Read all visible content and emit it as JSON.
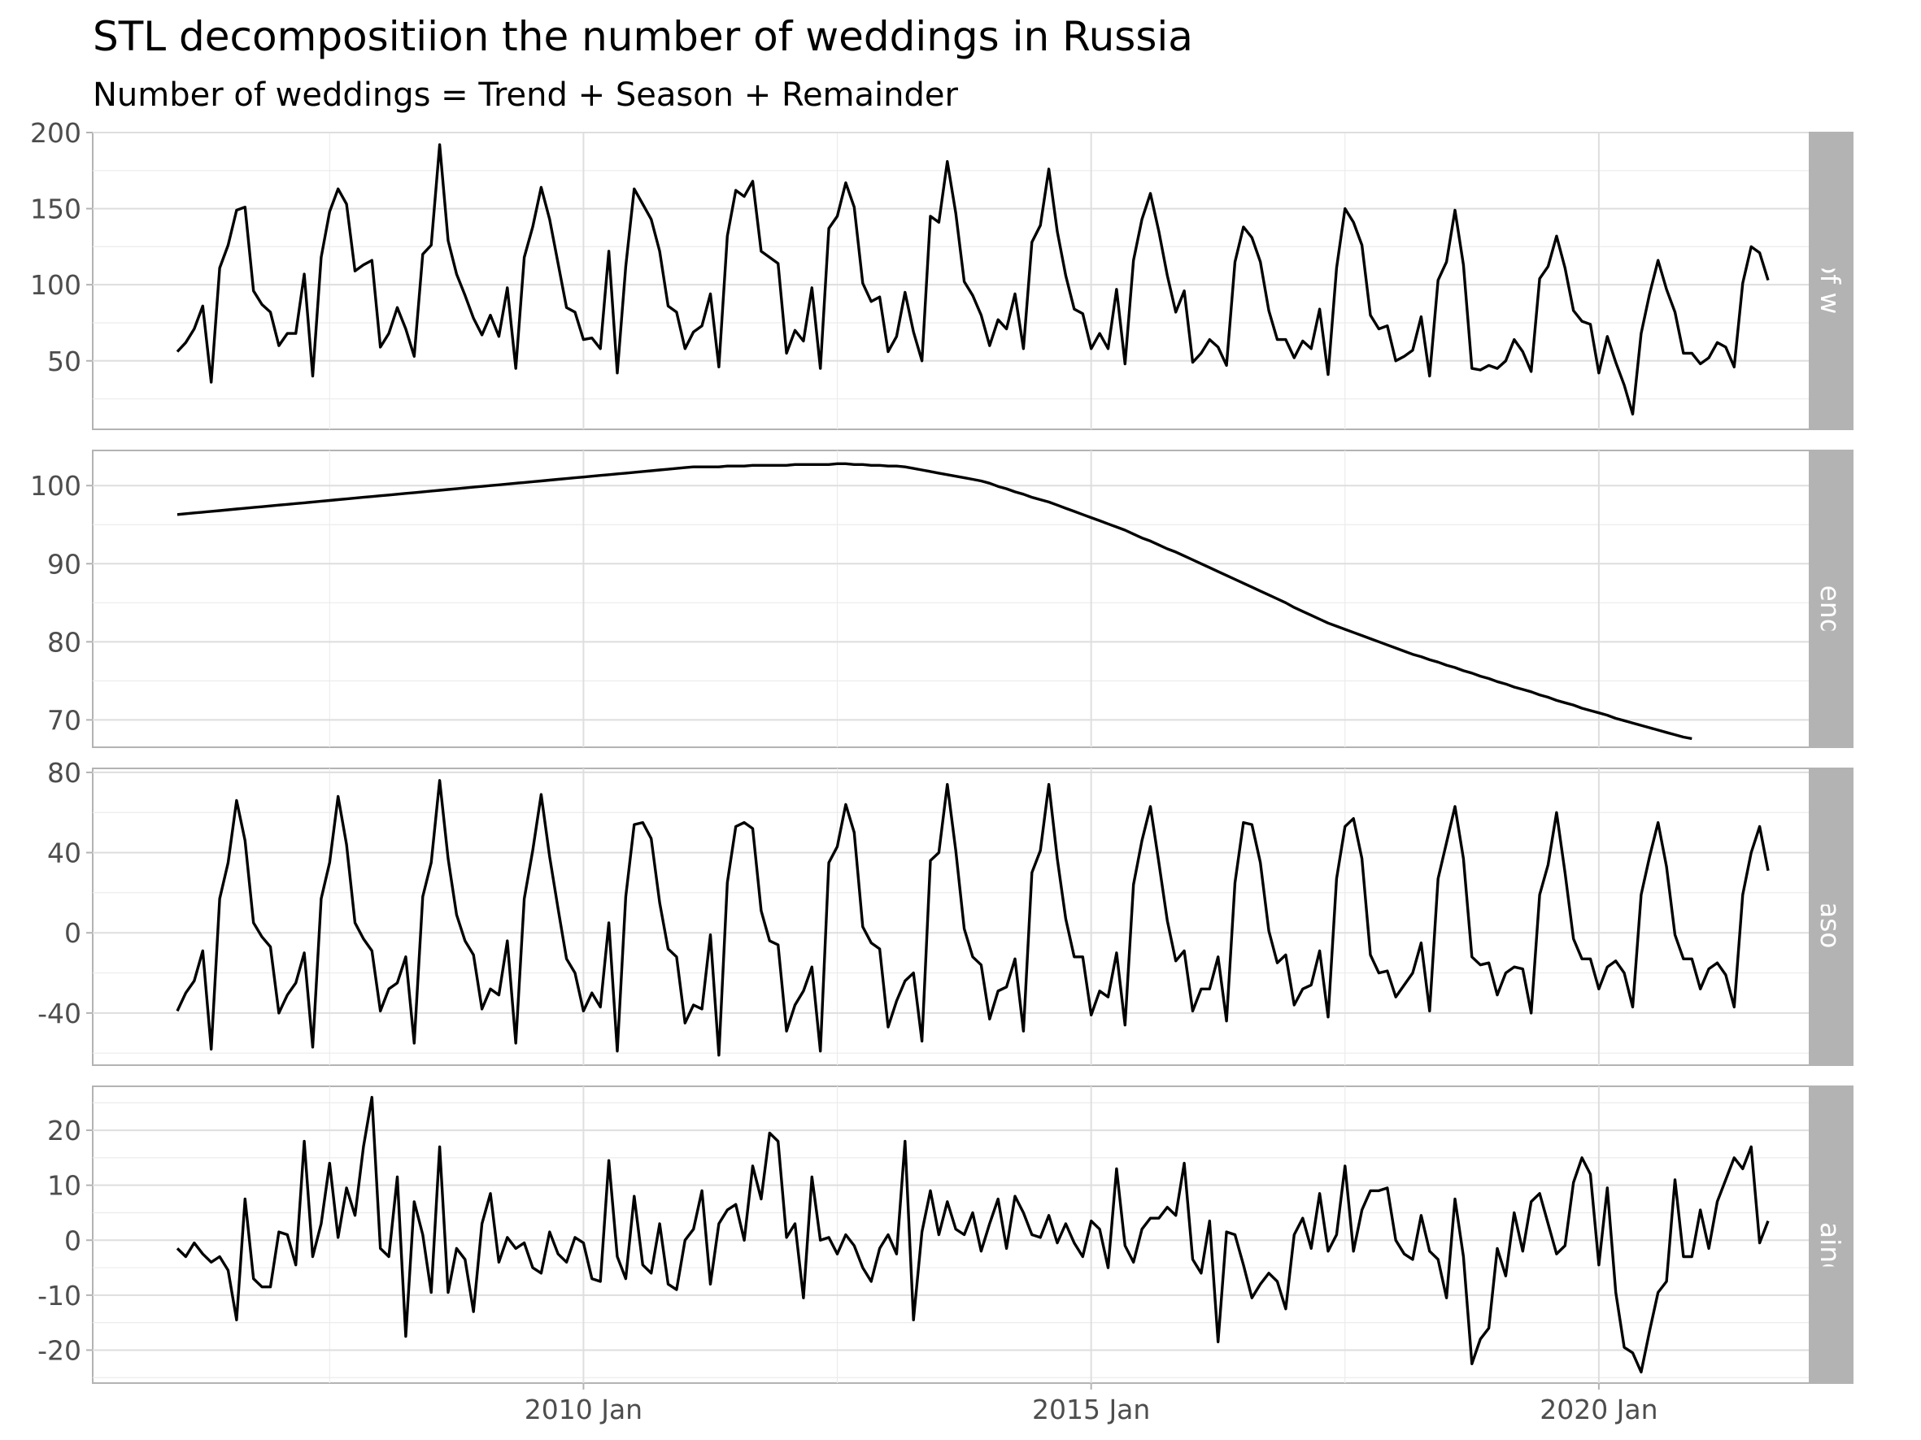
{
  "chart_data": {
    "type": "line",
    "title": "STL decompositiion the number of weddings in Russia",
    "subtitle": "Number of weddings = Trend + Season + Remainder",
    "x_start": "2006 Jan",
    "x_step": "month",
    "x_ticks": [
      "2010 Jan",
      "2015 Jan",
      "2020 Jan"
    ],
    "xlim": [
      "2005 Mar",
      "2022 Jul"
    ],
    "grid": true,
    "legend": "none",
    "panels": [
      {
        "name": "Number of weddings",
        "ylim": [
          5,
          200
        ],
        "y_ticks": [
          50,
          100,
          150,
          200
        ],
        "values": [
          56,
          62,
          71,
          86,
          36,
          111,
          126,
          149,
          151,
          96,
          87,
          82,
          60,
          68,
          68,
          107,
          40,
          118,
          148,
          163,
          153,
          109,
          113,
          116,
          59,
          68,
          85,
          71,
          53,
          120,
          126,
          192,
          129,
          107,
          93,
          78,
          67,
          80,
          66,
          98,
          45,
          118,
          138,
          164,
          143,
          114,
          85,
          82,
          64,
          65,
          58,
          122,
          42,
          112,
          163,
          153,
          143,
          122,
          86,
          82,
          58,
          69,
          73,
          94,
          46,
          132,
          162,
          158,
          168,
          122,
          118,
          114,
          55,
          70,
          63,
          98,
          45,
          137,
          145,
          167,
          151,
          101,
          89,
          92,
          56,
          66,
          95,
          69,
          50,
          145,
          141,
          181,
          147,
          102,
          93,
          80,
          60,
          77,
          71,
          94,
          58,
          128,
          139,
          176,
          135,
          106,
          84,
          81,
          58,
          68,
          58,
          97,
          48,
          116,
          143,
          160,
          135,
          106,
          82,
          96,
          49,
          55,
          64,
          59,
          47,
          115,
          138,
          131,
          115,
          83,
          64,
          64,
          52,
          63,
          58,
          84,
          41,
          111,
          150,
          141,
          126,
          80,
          71,
          73,
          50,
          53,
          57,
          79,
          40,
          103,
          115,
          149,
          113,
          45,
          44,
          47,
          45,
          50,
          64,
          56,
          43,
          104,
          112,
          132,
          111,
          83,
          76,
          74,
          42,
          66,
          49,
          34,
          15,
          68,
          94,
          116,
          97,
          82,
          55,
          55,
          48,
          52,
          62,
          59,
          46,
          101,
          125,
          121,
          103
        ]
      },
      {
        "name": "Trend",
        "ylim": [
          66.5,
          104.5
        ],
        "y_ticks": [
          70,
          80,
          90,
          100
        ],
        "values": [
          96.3,
          96.4,
          96.5,
          96.6,
          96.7,
          96.8,
          96.9,
          97.0,
          97.1,
          97.2,
          97.3,
          97.4,
          97.5,
          97.6,
          97.7,
          97.8,
          97.9,
          98.0,
          98.1,
          98.2,
          98.3,
          98.4,
          98.5,
          98.6,
          98.7,
          98.8,
          98.9,
          99.0,
          99.1,
          99.2,
          99.3,
          99.4,
          99.5,
          99.6,
          99.7,
          99.8,
          99.9,
          100.0,
          100.1,
          100.2,
          100.3,
          100.4,
          100.5,
          100.6,
          100.7,
          100.8,
          100.9,
          101.0,
          101.1,
          101.2,
          101.3,
          101.4,
          101.5,
          101.6,
          101.7,
          101.8,
          101.9,
          102.0,
          102.1,
          102.2,
          102.3,
          102.4,
          102.4,
          102.4,
          102.4,
          102.5,
          102.5,
          102.5,
          102.6,
          102.6,
          102.6,
          102.6,
          102.6,
          102.7,
          102.7,
          102.7,
          102.7,
          102.7,
          102.8,
          102.8,
          102.7,
          102.7,
          102.6,
          102.6,
          102.5,
          102.5,
          102.4,
          102.2,
          102.0,
          101.8,
          101.6,
          101.4,
          101.2,
          101.0,
          100.8,
          100.6,
          100.3,
          99.9,
          99.6,
          99.2,
          98.9,
          98.5,
          98.2,
          97.9,
          97.5,
          97.1,
          96.7,
          96.3,
          95.9,
          95.5,
          95.1,
          94.7,
          94.3,
          93.8,
          93.3,
          92.9,
          92.4,
          91.9,
          91.5,
          91.0,
          90.5,
          90.0,
          89.5,
          89.0,
          88.5,
          88.0,
          87.5,
          87.0,
          86.5,
          86.0,
          85.5,
          85.0,
          84.4,
          83.9,
          83.4,
          82.9,
          82.4,
          82.0,
          81.6,
          81.2,
          80.8,
          80.4,
          80.0,
          79.6,
          79.2,
          78.8,
          78.4,
          78.1,
          77.7,
          77.4,
          77.0,
          76.7,
          76.3,
          76.0,
          75.6,
          75.3,
          74.9,
          74.6,
          74.2,
          73.9,
          73.6,
          73.2,
          72.9,
          72.5,
          72.2,
          71.9,
          71.5,
          71.2,
          70.9,
          70.6,
          70.2,
          69.9,
          69.6,
          69.3,
          69.0,
          68.7,
          68.4,
          68.1,
          67.8,
          67.6
        ]
      },
      {
        "name": "Season",
        "ylim": [
          -66,
          82
        ],
        "y_ticks": [
          -40,
          0,
          40,
          80
        ],
        "values": [
          -39,
          -30,
          -24,
          -9,
          -58,
          17,
          35,
          66,
          46,
          5,
          -2,
          -7,
          -40,
          -31,
          -25,
          -10,
          -57,
          17,
          35,
          68,
          44,
          5,
          -3,
          -9,
          -39,
          -28,
          -25,
          -12,
          -55,
          18,
          35,
          76,
          37,
          9,
          -4,
          -11,
          -38,
          -28,
          -31,
          -4,
          -55,
          17,
          41,
          69,
          38,
          12,
          -13,
          -20,
          -39,
          -30,
          -37,
          5,
          -59,
          18,
          54,
          55,
          47,
          15,
          -8,
          -12,
          -45,
          -36,
          -38,
          -1,
          -61,
          25,
          53,
          55,
          52,
          11,
          -4,
          -6,
          -49,
          -36,
          -29,
          -17,
          -59,
          35,
          43,
          64,
          50,
          3,
          -5,
          -8,
          -47,
          -34,
          -24,
          -20,
          -54,
          36,
          40,
          74,
          41,
          2,
          -12,
          -16,
          -43,
          -29,
          -27,
          -13,
          -49,
          30,
          41,
          74,
          37,
          7,
          -12,
          -12,
          -41,
          -29,
          -32,
          -10,
          -46,
          24,
          46,
          63,
          35,
          6,
          -14,
          -9,
          -39,
          -28,
          -28,
          -12,
          -44,
          25,
          55,
          54,
          35,
          1,
          -15,
          -11,
          -36,
          -28,
          -26,
          -9,
          -42,
          27,
          53,
          57,
          37,
          -11,
          -20,
          -19,
          -32,
          -26,
          -20,
          -5,
          -39,
          27,
          45,
          63,
          37,
          -12,
          -16,
          -15,
          -31,
          -20,
          -17,
          -18,
          -40,
          19,
          34,
          60,
          30,
          -3,
          -13,
          -13,
          -28,
          -17,
          -14,
          -20,
          -37,
          19,
          38,
          55,
          33,
          -1,
          -13,
          -13,
          -28,
          -18,
          -15,
          -21,
          -37,
          19,
          40,
          53,
          31
        ]
      },
      {
        "name": "Remainder",
        "ylim": [
          -26,
          28
        ],
        "y_ticks": [
          -20,
          -10,
          0,
          10,
          20
        ],
        "values": [
          -1.5,
          -3,
          -0.5,
          -2.5,
          -4,
          -3,
          -5.5,
          -14.5,
          7.5,
          -7,
          -8.5,
          -8.5,
          1.5,
          1,
          -4.5,
          18,
          -3,
          3,
          14,
          0.5,
          9.5,
          4.5,
          17,
          26,
          -1.5,
          -3,
          11.5,
          -17.5,
          7,
          1,
          -9.5,
          17,
          -9.5,
          -1.5,
          -3.5,
          -13,
          3,
          8.5,
          -4,
          0.5,
          -1.5,
          -0.5,
          -5,
          -6,
          1.5,
          -2.5,
          -4,
          0.5,
          -0.5,
          -7,
          -7.5,
          14.5,
          -3,
          -7,
          8,
          -4.5,
          -6,
          3,
          -8,
          -9,
          0,
          2,
          9,
          -8,
          3,
          5.5,
          6.5,
          0,
          13.5,
          7.5,
          19.5,
          18,
          0.5,
          3,
          -10.5,
          11.5,
          0,
          0.5,
          -2.5,
          1,
          -1,
          -5,
          -7.5,
          -1.5,
          1,
          -2.5,
          18,
          -14.5,
          1.5,
          9,
          1,
          7,
          2,
          1,
          5,
          -2,
          3,
          7.5,
          -1.5,
          8,
          5,
          1,
          0.5,
          4.5,
          -0.5,
          3,
          -0.5,
          -3,
          3.5,
          2,
          -5,
          13,
          -1,
          -4,
          2,
          4,
          4,
          6,
          4.5,
          14,
          -3.5,
          -6,
          3.5,
          -18.5,
          1.5,
          1,
          -4.5,
          -10.5,
          -8,
          -6,
          -7.5,
          -12.5,
          1,
          4,
          -1.5,
          8.5,
          -2,
          1,
          13.5,
          -2,
          5.5,
          9,
          9,
          9.5,
          0,
          -2.5,
          -3.5,
          4.5,
          -2,
          -3.5,
          -10.5,
          7.5,
          -3,
          -22.5,
          -18,
          -16,
          -1.5,
          -6.5,
          5,
          -2,
          7,
          8.5,
          3,
          -2.5,
          -1,
          10.5,
          15,
          12,
          -4.5,
          9.5,
          -9.5,
          -19.5,
          -20.5,
          -24,
          -16.5,
          -9.5,
          -7.5,
          11,
          -3,
          -3,
          5.5,
          -1.5,
          7,
          11,
          15,
          13,
          17,
          -0.5,
          3.5
        ]
      }
    ]
  }
}
